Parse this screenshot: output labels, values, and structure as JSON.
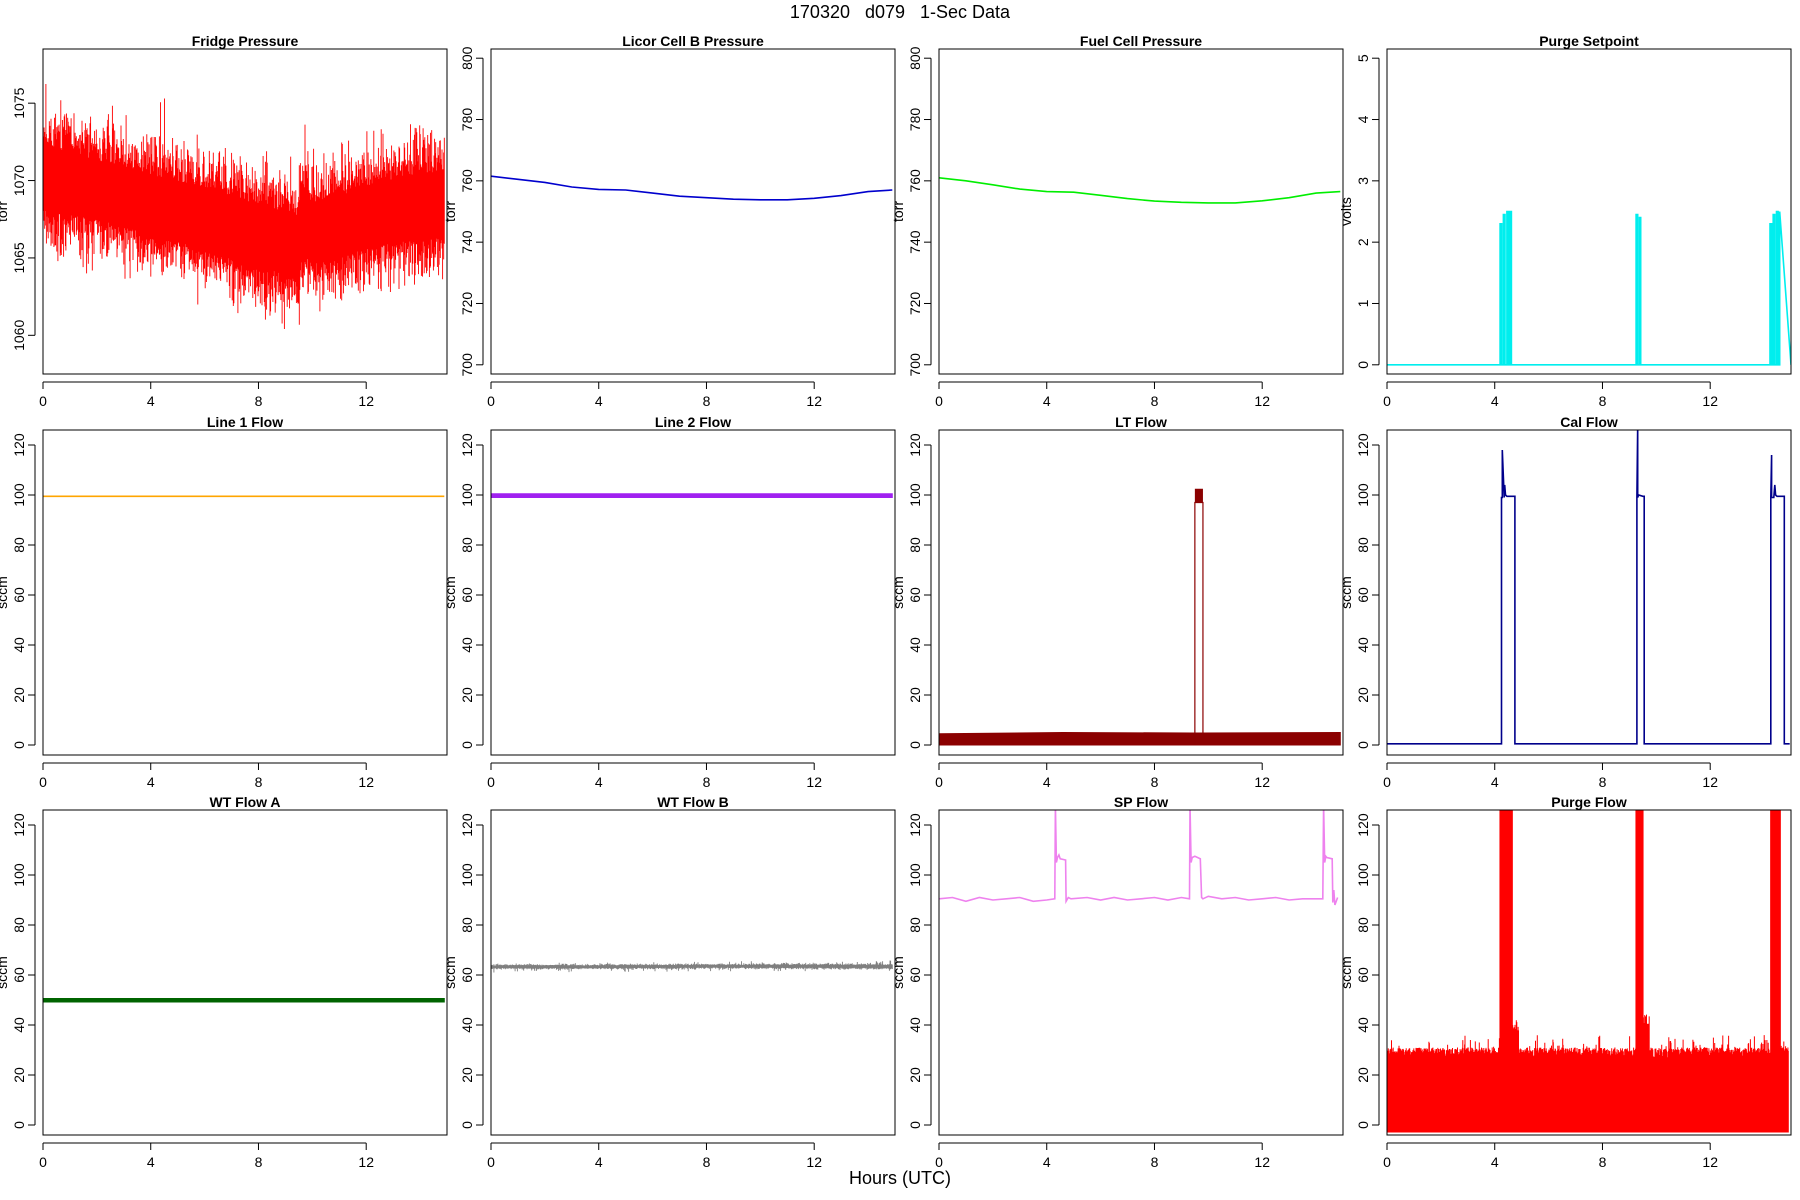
{
  "title": "170320   d079   1-Sec Data",
  "xlabel": "Hours (UTC)",
  "chart_data": [
    {
      "type": "line",
      "title": "Fridge Pressure",
      "ylabel": "torr",
      "xlim": [
        0,
        15
      ],
      "ylim": [
        1057.5,
        1078.5
      ],
      "xticks": [
        0,
        4,
        8,
        12
      ],
      "yticks": [
        1060,
        1065,
        1070,
        1075
      ],
      "color": "#FF0000",
      "render": "noise",
      "series": [
        {
          "x": [
            0,
            0.5,
            1,
            2,
            3,
            4,
            5,
            6,
            7,
            8,
            9,
            9.5,
            9.6,
            10,
            11,
            12,
            13,
            14,
            14.9
          ],
          "y_center": [
            1070.3,
            1070,
            1069.8,
            1069.4,
            1069,
            1068.4,
            1068,
            1067.6,
            1067,
            1066.4,
            1066,
            1065.6,
            1067.4,
            1066.6,
            1067,
            1067.6,
            1068,
            1068.3,
            1068.5
          ],
          "y_spread": [
            3.5,
            3.5,
            3.3,
            3.2,
            3.2,
            3.3,
            3.3,
            3.3,
            3.4,
            3.4,
            3.3,
            3.4,
            3.5,
            3.3,
            3.3,
            3.3,
            3.4,
            3.5,
            3.5
          ],
          "y_min": [
            1066,
            1065,
            1064,
            1063.5,
            1063,
            1062.5,
            1062,
            1061.5,
            1060.8,
            1059.5,
            1059,
            1059.8,
            1062,
            1061,
            1061.5,
            1062,
            1063,
            1063.5,
            1064
          ],
          "y_max": [
            1077,
            1077.5,
            1076,
            1075,
            1075,
            1074.5,
            1076.5,
            1073.5,
            1073,
            1072.5,
            1072,
            1072,
            1075.5,
            1073,
            1072.5,
            1073,
            1074,
            1074,
            1074
          ]
        }
      ]
    },
    {
      "type": "line",
      "title": "Licor Cell B Pressure",
      "ylabel": "torr",
      "xlim": [
        0,
        15
      ],
      "ylim": [
        697,
        803
      ],
      "xticks": [
        0,
        4,
        8,
        12
      ],
      "yticks": [
        700,
        720,
        740,
        760,
        780,
        800
      ],
      "color": "#0000CD",
      "render": "line",
      "series": [
        {
          "x": [
            0,
            1,
            2,
            3,
            4,
            5,
            6,
            7,
            8,
            9,
            10,
            11,
            12,
            13,
            14,
            14.9
          ],
          "y": [
            761.5,
            760.5,
            759.5,
            758,
            757.2,
            757,
            756,
            755,
            754.5,
            754,
            753.8,
            753.8,
            754.3,
            755.2,
            756.5,
            757
          ]
        }
      ]
    },
    {
      "type": "line",
      "title": "Fuel Cell Pressure",
      "ylabel": "torr",
      "xlim": [
        0,
        15
      ],
      "ylim": [
        697,
        803
      ],
      "xticks": [
        0,
        4,
        8,
        12
      ],
      "yticks": [
        700,
        720,
        740,
        760,
        780,
        800
      ],
      "color": "#00EE00",
      "render": "line",
      "series": [
        {
          "x": [
            0,
            1,
            2,
            3,
            4,
            5,
            6,
            7,
            8,
            9,
            10,
            11,
            12,
            13,
            14,
            14.9
          ],
          "y": [
            761,
            760,
            758.7,
            757.3,
            756.5,
            756.3,
            755.3,
            754.2,
            753.4,
            753,
            752.8,
            752.8,
            753.5,
            754.5,
            756,
            756.5
          ]
        }
      ]
    },
    {
      "type": "line",
      "title": "Purge Setpoint",
      "ylabel": "volts",
      "xlim": [
        0,
        15
      ],
      "ylim": [
        -0.15,
        5.15
      ],
      "xticks": [
        0,
        4,
        8,
        12
      ],
      "yticks": [
        0,
        1,
        2,
        3,
        4,
        5
      ],
      "color": "#00EEEE",
      "render": "line",
      "series": [
        {
          "x": [
            0,
            4.2,
            4.2,
            4.26,
            4.26,
            4.32,
            4.32,
            4.38,
            4.38,
            4.45,
            4.45,
            4.5,
            4.5,
            4.56,
            4.56,
            4.62,
            4.62,
            9.25,
            9.25,
            9.31,
            9.31,
            9.37,
            9.37,
            9.42,
            9.42,
            9.48,
            9.48,
            14.22,
            14.22,
            14.28,
            14.28,
            14.34,
            14.34,
            14.4,
            14.4,
            14.46,
            14.46,
            14.52,
            14.52,
            14.58,
            14.58,
            15
          ],
          "y": [
            0,
            0,
            2.3,
            2.3,
            0,
            0,
            2.45,
            2.45,
            0,
            0,
            2.5,
            2.5,
            0,
            0,
            2.5,
            2.5,
            0,
            0,
            2.45,
            2.45,
            0,
            0,
            2.4,
            2.4,
            0,
            0,
            0,
            0,
            2.3,
            2.3,
            0,
            0,
            2.45,
            2.45,
            0,
            0,
            2.5,
            2.5,
            0,
            0,
            2.5,
            0
          ]
        }
      ]
    },
    {
      "type": "line",
      "title": "Line 1 Flow",
      "ylabel": "sccm",
      "xlim": [
        0,
        15
      ],
      "ylim": [
        -4,
        126
      ],
      "xticks": [
        0,
        4,
        8,
        12
      ],
      "yticks": [
        0,
        20,
        40,
        60,
        80,
        100,
        120
      ],
      "color": "#FFA500",
      "render": "line",
      "series": [
        {
          "x": [
            0,
            14.9
          ],
          "y": [
            99.5,
            99.5
          ]
        }
      ]
    },
    {
      "type": "line",
      "title": "Line 2 Flow",
      "ylabel": "sccm",
      "xlim": [
        0,
        15
      ],
      "ylim": [
        -4,
        126
      ],
      "xticks": [
        0,
        4,
        8,
        12
      ],
      "yticks": [
        0,
        20,
        40,
        60,
        80,
        100,
        120
      ],
      "color": "#A020F0",
      "render": "band",
      "series": [
        {
          "x": [
            0,
            14.9
          ],
          "y_low": [
            99,
            99
          ],
          "y_high": [
            100.5,
            100.5
          ]
        }
      ]
    },
    {
      "type": "line",
      "title": "LT Flow",
      "ylabel": "sccm",
      "xlim": [
        0,
        15
      ],
      "ylim": [
        -4,
        126
      ],
      "xticks": [
        0,
        4,
        8,
        12
      ],
      "yticks": [
        0,
        20,
        40,
        60,
        80,
        100,
        120
      ],
      "color": "#8B0000",
      "render": "lt",
      "series": [
        {
          "band": {
            "x": [
              0,
              4.6,
              9.4,
              9.8,
              14.9
            ],
            "y_low": [
              0,
              0,
              0,
              0,
              0
            ],
            "y_high": [
              4.5,
              5,
              4.8,
              4.8,
              5
            ]
          },
          "pulse": {
            "x_start": 9.5,
            "x_end": 9.8,
            "y_low": 97,
            "y_high": 102.5
          }
        }
      ]
    },
    {
      "type": "line",
      "title": "Cal Flow",
      "ylabel": "sccm",
      "xlim": [
        0,
        15
      ],
      "ylim": [
        -4,
        126
      ],
      "xticks": [
        0,
        4,
        8,
        12
      ],
      "yticks": [
        0,
        20,
        40,
        60,
        80,
        100,
        120
      ],
      "color": "#00008B",
      "render": "line",
      "series": [
        {
          "x": [
            0,
            4.25,
            4.25,
            4.28,
            4.28,
            4.35,
            4.37,
            4.4,
            4.45,
            4.75,
            4.75,
            9.28,
            9.28,
            9.31,
            9.31,
            9.34,
            9.5,
            9.55,
            9.55,
            14.25,
            14.25,
            14.28,
            14.28,
            14.36,
            14.4,
            14.43,
            14.48,
            14.75,
            14.75,
            14.95
          ],
          "y": [
            0.5,
            0.5,
            99,
            99,
            118,
            99,
            104,
            100,
            99.5,
            99.5,
            0.5,
            0.5,
            99,
            128,
            99,
            100,
            99.5,
            99.5,
            0.5,
            0.5,
            99,
            116,
            99,
            99,
            104,
            100,
            99.5,
            99.5,
            0.5,
            0.5
          ]
        }
      ]
    },
    {
      "type": "line",
      "title": "WT Flow A",
      "ylabel": "sccm",
      "xlim": [
        0,
        15
      ],
      "ylim": [
        -4,
        126
      ],
      "xticks": [
        0,
        4,
        8,
        12
      ],
      "yticks": [
        0,
        20,
        40,
        60,
        80,
        100,
        120
      ],
      "color": "#006400",
      "render": "band",
      "series": [
        {
          "x": [
            0,
            14.9
          ],
          "y_low": [
            49.2,
            49.2
          ],
          "y_high": [
            50.6,
            50.6
          ]
        }
      ]
    },
    {
      "type": "line",
      "title": "WT Flow B",
      "ylabel": "sccm",
      "xlim": [
        0,
        15
      ],
      "ylim": [
        -4,
        126
      ],
      "xticks": [
        0,
        4,
        8,
        12
      ],
      "yticks": [
        0,
        20,
        40,
        60,
        80,
        100,
        120
      ],
      "color": "#7F7F7F",
      "render": "noise",
      "series": [
        {
          "x": [
            0,
            4,
            8,
            12,
            14.9
          ],
          "y_center": [
            63.3,
            63.3,
            63.5,
            63.5,
            63.4
          ],
          "y_spread": [
            0.8,
            0.8,
            0.8,
            0.9,
            0.9
          ],
          "y_min": [
            61,
            61,
            61.5,
            61.5,
            61.5
          ],
          "y_max": [
            65,
            65,
            65.5,
            66,
            66
          ]
        }
      ]
    },
    {
      "type": "line",
      "title": "SP Flow",
      "ylabel": "sccm",
      "xlim": [
        0,
        15
      ],
      "ylim": [
        -4,
        126
      ],
      "xticks": [
        0,
        4,
        8,
        12
      ],
      "yticks": [
        0,
        20,
        40,
        60,
        80,
        100,
        120
      ],
      "color": "#EE82EE",
      "render": "line",
      "series": [
        {
          "x": [
            0,
            0.5,
            1,
            1.5,
            2,
            2.5,
            3,
            3.5,
            4,
            4.3,
            4.32,
            4.36,
            4.4,
            4.45,
            4.5,
            4.7,
            4.72,
            4.8,
            4.9,
            5.5,
            6,
            6.5,
            7,
            7.5,
            8,
            8.5,
            9,
            9.3,
            9.32,
            9.36,
            9.4,
            9.5,
            9.7,
            9.75,
            9.8,
            10,
            10.5,
            11,
            11.5,
            12,
            12.5,
            13,
            13.5,
            14.25,
            14.28,
            14.32,
            14.36,
            14.4,
            14.6,
            14.62,
            14.66,
            14.7,
            14.8
          ],
          "y": [
            90.5,
            91,
            89.5,
            91,
            90,
            90.5,
            91,
            89.5,
            90,
            90.5,
            128,
            105,
            107,
            108,
            106.5,
            106,
            89.5,
            91,
            90.5,
            91,
            90,
            91,
            90,
            90.5,
            91,
            90,
            91,
            90.5,
            128,
            105,
            107,
            107.5,
            106.5,
            91,
            90.5,
            91.5,
            90.5,
            91,
            90,
            90.5,
            91,
            90,
            90.5,
            90.5,
            128,
            105,
            107.5,
            107,
            106.5,
            89,
            94,
            88,
            91
          ]
        }
      ]
    },
    {
      "type": "line",
      "title": "Purge Flow",
      "ylabel": "sccm",
      "xlim": [
        0,
        15
      ],
      "ylim": [
        -4,
        126
      ],
      "xticks": [
        0,
        4,
        8,
        12
      ],
      "yticks": [
        0,
        20,
        40,
        60,
        80,
        100,
        120
      ],
      "color": "#FF0000",
      "render": "purge",
      "series": [
        {
          "band": {
            "x": [
              0,
              14.9
            ],
            "y_low": [
              -3,
              -3
            ],
            "y_high": [
              31,
              31
            ],
            "y_max": [
              36,
              36
            ]
          },
          "pulses": [
            {
              "x_start": 4.2,
              "x_end": 4.65
            },
            {
              "x_start": 9.25,
              "x_end": 9.5
            },
            {
              "x_start": 14.25,
              "x_end": 14.6
            }
          ],
          "pulse_top": 128,
          "pulse_mid": 70,
          "after_pulse_high": [
            42,
            45,
            32
          ]
        }
      ]
    }
  ]
}
